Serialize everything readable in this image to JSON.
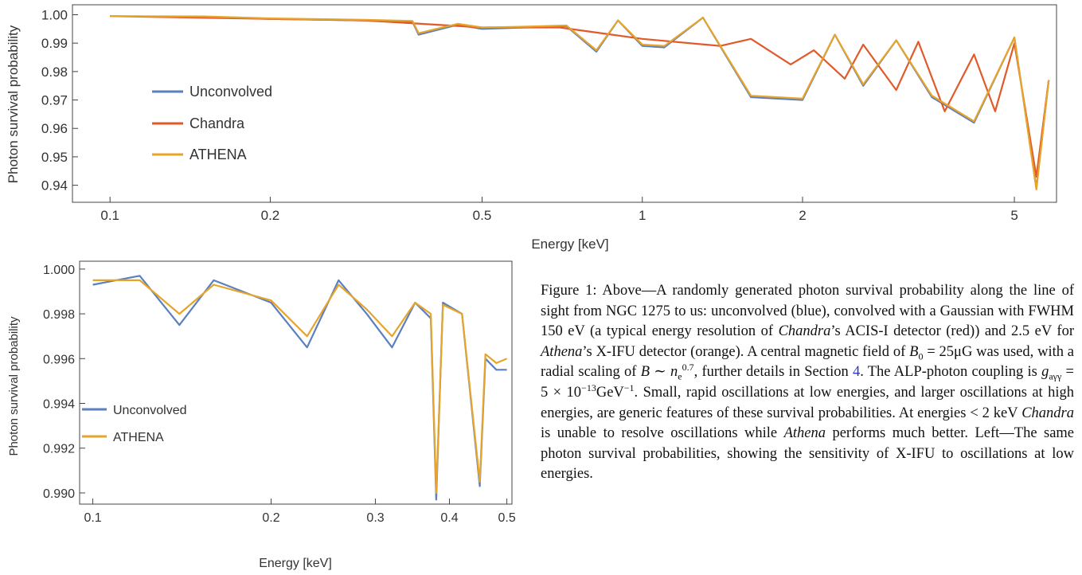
{
  "chart_data": [
    {
      "type": "line",
      "title": "",
      "xlabel": "Energy [keV]",
      "ylabel": "Photon survival probability",
      "x_scale": "log",
      "xlim": [
        0.085,
        6.0
      ],
      "ylim": [
        0.934,
        1.0035
      ],
      "x_ticks": [
        0.1,
        0.2,
        0.5,
        1,
        2,
        5
      ],
      "x_tick_labels": [
        "0.1",
        "0.2",
        "0.5",
        "1",
        "2",
        "5"
      ],
      "y_ticks": [
        0.94,
        0.95,
        0.96,
        0.97,
        0.98,
        0.99,
        1.0
      ],
      "y_tick_labels": [
        "0.94",
        "0.95",
        "0.96",
        "0.97",
        "0.98",
        "0.99",
        "1.00"
      ],
      "legend_position": "left",
      "series": [
        {
          "name": "Unconvolved",
          "color": "#5b7fbf",
          "x": [
            0.1,
            0.15,
            0.2,
            0.3,
            0.37,
            0.38,
            0.45,
            0.5,
            0.6,
            0.72,
            0.82,
            0.9,
            1.0,
            1.1,
            1.3,
            1.6,
            2.0,
            2.3,
            2.6,
            3.0,
            3.5,
            4.2,
            5.0,
            5.5,
            5.8
          ],
          "y": [
            0.9995,
            0.9993,
            0.9985,
            0.998,
            0.9975,
            0.993,
            0.9965,
            0.995,
            0.9955,
            0.996,
            0.987,
            0.998,
            0.989,
            0.9885,
            0.999,
            0.971,
            0.97,
            0.993,
            0.975,
            0.991,
            0.971,
            0.962,
            0.992,
            0.939,
            0.977
          ]
        },
        {
          "name": "Chandra",
          "color": "#e05a2a",
          "x": [
            0.1,
            0.3,
            0.5,
            0.7,
            0.8,
            1.0,
            1.4,
            1.6,
            1.9,
            2.1,
            2.4,
            2.6,
            3.0,
            3.3,
            3.7,
            4.2,
            4.6,
            5.0,
            5.5,
            5.8
          ],
          "y": [
            0.9995,
            0.998,
            0.9955,
            0.9955,
            0.994,
            0.9915,
            0.989,
            0.9915,
            0.9825,
            0.9875,
            0.9775,
            0.9895,
            0.9735,
            0.9905,
            0.966,
            0.986,
            0.966,
            0.99,
            0.943,
            0.977
          ]
        },
        {
          "name": "ATHENA",
          "color": "#e6a42b",
          "x": [
            0.1,
            0.15,
            0.2,
            0.3,
            0.37,
            0.38,
            0.45,
            0.5,
            0.6,
            0.72,
            0.82,
            0.9,
            1.0,
            1.1,
            1.3,
            1.6,
            2.0,
            2.3,
            2.6,
            3.0,
            3.5,
            4.2,
            5.0,
            5.5,
            5.8
          ],
          "y": [
            0.9995,
            0.9994,
            0.9987,
            0.9982,
            0.9978,
            0.9935,
            0.9968,
            0.9955,
            0.9958,
            0.9962,
            0.9875,
            0.998,
            0.9895,
            0.989,
            0.999,
            0.9715,
            0.9705,
            0.993,
            0.9755,
            0.991,
            0.9715,
            0.9625,
            0.992,
            0.9385,
            0.977
          ]
        }
      ]
    },
    {
      "type": "line",
      "title": "",
      "xlabel": "Energy [keV]",
      "ylabel": "Photon survival probability",
      "x_scale": "log",
      "xlim": [
        0.095,
        0.51
      ],
      "ylim": [
        0.9895,
        1.00035
      ],
      "x_ticks": [
        0.1,
        0.2,
        0.3,
        0.4,
        0.5
      ],
      "x_tick_labels": [
        "0.1",
        "0.2",
        "0.3",
        "0.4",
        "0.5"
      ],
      "y_ticks": [
        0.99,
        0.992,
        0.994,
        0.996,
        0.998,
        1.0
      ],
      "y_tick_labels": [
        "0.990",
        "0.992",
        "0.994",
        "0.996",
        "0.998",
        "1.000"
      ],
      "legend_position": "left",
      "series": [
        {
          "name": "Unconvolved",
          "color": "#5b7fbf",
          "x": [
            0.1,
            0.12,
            0.14,
            0.16,
            0.2,
            0.23,
            0.26,
            0.29,
            0.32,
            0.35,
            0.372,
            0.38,
            0.39,
            0.42,
            0.45,
            0.46,
            0.48,
            0.5
          ],
          "y": [
            0.9993,
            0.9997,
            0.9975,
            0.9995,
            0.9985,
            0.9965,
            0.9995,
            0.998,
            0.9965,
            0.9985,
            0.9978,
            0.9897,
            0.9985,
            0.998,
            0.9903,
            0.996,
            0.9955,
            0.9955
          ]
        },
        {
          "name": "ATHENA",
          "color": "#e6a42b",
          "x": [
            0.1,
            0.12,
            0.14,
            0.16,
            0.2,
            0.23,
            0.26,
            0.29,
            0.32,
            0.35,
            0.372,
            0.38,
            0.39,
            0.42,
            0.45,
            0.46,
            0.48,
            0.5
          ],
          "y": [
            0.9995,
            0.9995,
            0.998,
            0.9993,
            0.9986,
            0.997,
            0.9993,
            0.9982,
            0.997,
            0.9985,
            0.998,
            0.99,
            0.9984,
            0.998,
            0.9905,
            0.9962,
            0.9958,
            0.996
          ]
        }
      ]
    }
  ],
  "caption": {
    "figure_label": "Figure 1:",
    "part1": " Above—A randomly generated photon survival probability along the line of sight from NGC 1275 to us: unconvolved (blue), convolved with a Gaussian with FWHM 150 eV (a typical energy resolution of ",
    "chandra_italic": "Chandra",
    "part2": "’s ACIS-I detector (red)) and 2.5 eV for ",
    "athena_italic": "Athena",
    "part3": "’s X-IFU detector (orange). A central magnetic field of ",
    "b0_expr": "B",
    "b0_sub": "0",
    "b0_value": " = 25μG was used, with a radial scaling of ",
    "b_scaling_expr": "B ∼ n",
    "b_scaling_sub": "e",
    "b_scaling_sup": "0.7",
    "part4": ", further details in Section ",
    "section_ref": "4",
    "part5": ". The ALP-photon coupling is ",
    "g_symbol": "g",
    "g_sub": "aγγ",
    "g_value": " = 5 × 10",
    "g_exp": "−13",
    "g_unit": "GeV",
    "g_unit_exp": "−1",
    "part6": ". Small, rapid oscillations at low energies, and larger oscillations at high energies, are generic features of these survival probabilities. At energies < 2 keV ",
    "chandra2_italic": "Chandra",
    "part7": " is unable to resolve oscillations while ",
    "athena2_italic": "Athena",
    "part8": " performs much better. Left—The same photon survival probabilities, showing the sensitivity of X-IFU to oscillations at low energies."
  }
}
